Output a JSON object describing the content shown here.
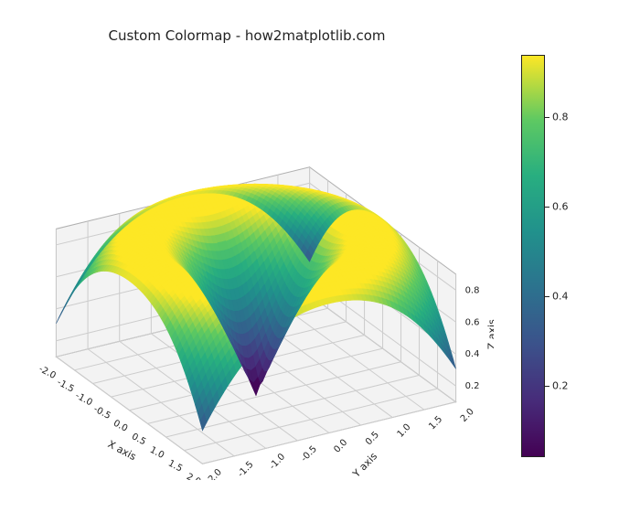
{
  "title": "Custom Colormap - how2matplotlib.com",
  "chart": {
    "type": "3d-surface",
    "function": "sin(sqrt(x^2 + y^2))",
    "background_color": "#ffffff",
    "pane_color": "#f3f3f3",
    "grid_color": "#cccccc",
    "edge_color": "#b0b0b0",
    "x_axis": {
      "label": "X axis",
      "min": -2.0,
      "max": 2.0,
      "ticks": [
        -2.0,
        -1.5,
        -1.0,
        -0.5,
        0.0,
        0.5,
        1.0,
        1.5,
        2.0
      ]
    },
    "y_axis": {
      "label": "Y axis",
      "min": -2.0,
      "max": 2.0,
      "ticks": [
        -2.0,
        -1.5,
        -1.0,
        -0.5,
        0.0,
        0.5,
        1.0,
        1.5,
        2.0
      ]
    },
    "z_axis": {
      "label": "Z axis",
      "min": 0.1,
      "max": 0.9,
      "ticks": [
        0.2,
        0.4,
        0.6,
        0.8
      ]
    },
    "surface_resolution": 60,
    "view": {
      "elev": 28,
      "azim": -60
    },
    "colormap": {
      "name": "viridis",
      "stops": [
        {
          "t": 0.0,
          "color": "#440154"
        },
        {
          "t": 0.14,
          "color": "#472c7a"
        },
        {
          "t": 0.28,
          "color": "#3b528b"
        },
        {
          "t": 0.42,
          "color": "#2c728e"
        },
        {
          "t": 0.56,
          "color": "#21918c"
        },
        {
          "t": 0.7,
          "color": "#28ae80"
        },
        {
          "t": 0.84,
          "color": "#5ec962"
        },
        {
          "t": 1.0,
          "color": "#fde725"
        }
      ]
    },
    "colorbar": {
      "vmin": 0.04,
      "vmax": 0.94,
      "ticks": [
        0.2,
        0.4,
        0.6,
        0.8
      ]
    },
    "title_fontsize": 15,
    "label_fontsize": 11,
    "tick_fontsize": 10
  }
}
